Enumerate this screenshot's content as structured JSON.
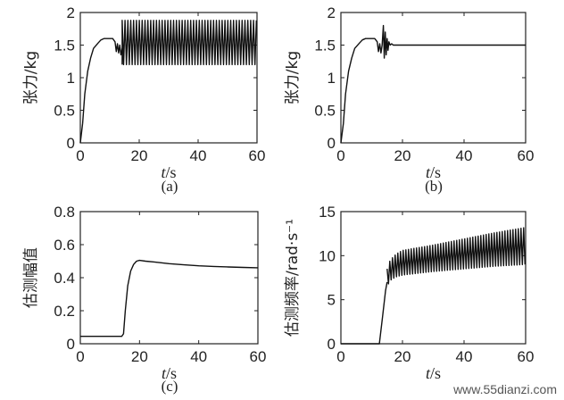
{
  "chart_data": [
    {
      "id": "a",
      "type": "line",
      "caption": "(a)",
      "ylabel": "张力/kg",
      "xlabel_var": "t",
      "xlabel_unit": "/s",
      "xlim": [
        0,
        60
      ],
      "ylim": [
        0,
        2
      ],
      "xticks": [
        0,
        20,
        40,
        60
      ],
      "yticks": [
        0,
        0.5,
        1,
        1.5,
        2
      ],
      "ytick_labels": [
        "0",
        "0.5",
        "1",
        "1.5",
        "2"
      ],
      "series": [
        {
          "x": [
            0,
            0.8,
            1.5,
            2.5,
            3.5,
            4.5,
            6,
            7,
            8,
            9,
            10,
            11,
            11.8,
            12.2,
            12.6,
            13.0,
            13.4,
            13.8,
            14.2
          ],
          "y": [
            0,
            0.3,
            0.75,
            1.1,
            1.3,
            1.45,
            1.53,
            1.58,
            1.6,
            1.6,
            1.6,
            1.6,
            1.55,
            1.4,
            1.52,
            1.38,
            1.5,
            1.35,
            1.45
          ]
        }
      ],
      "oscillation": {
        "x_start": 14.2,
        "x_end": 60,
        "y_low": 1.2,
        "y_high": 1.88
      }
    },
    {
      "id": "b",
      "type": "line",
      "caption": "(b)",
      "ylabel": "张力/kg",
      "xlabel_var": "t",
      "xlabel_unit": "/s",
      "xlim": [
        0,
        60
      ],
      "ylim": [
        0,
        2
      ],
      "xticks": [
        0,
        20,
        40,
        60
      ],
      "yticks": [
        0,
        0.5,
        1,
        1.5,
        2
      ],
      "ytick_labels": [
        "0",
        "0.5",
        "1",
        "1.5",
        "2"
      ],
      "series": [
        {
          "x": [
            0,
            0.8,
            1.5,
            2.5,
            3.5,
            4.5,
            6,
            7,
            8,
            9,
            10,
            11,
            11.8,
            12.2,
            12.6,
            13.0,
            13.4,
            13.8,
            14.1,
            14.4,
            14.7,
            15.0,
            15.3,
            15.6,
            16.0,
            16.5,
            17,
            60
          ],
          "y": [
            0,
            0.3,
            0.75,
            1.1,
            1.3,
            1.45,
            1.53,
            1.58,
            1.6,
            1.6,
            1.6,
            1.6,
            1.55,
            1.4,
            1.52,
            1.38,
            1.5,
            1.8,
            1.3,
            1.7,
            1.35,
            1.6,
            1.42,
            1.55,
            1.5,
            1.52,
            1.5,
            1.5
          ]
        }
      ]
    },
    {
      "id": "c",
      "type": "line",
      "caption": "(c)",
      "ylabel": "估测幅值",
      "xlabel_var": "t",
      "xlabel_unit": "/s",
      "xlim": [
        0,
        60
      ],
      "ylim": [
        0,
        0.8
      ],
      "xticks": [
        0,
        20,
        40,
        60
      ],
      "yticks": [
        0,
        0.2,
        0.4,
        0.6,
        0.8
      ],
      "ytick_labels": [
        "0",
        "0.2",
        "0.4",
        "0.6",
        "0.8"
      ],
      "series": [
        {
          "x": [
            0,
            5,
            10,
            14,
            14.6,
            15.2,
            16,
            17,
            18,
            19,
            20,
            22,
            25,
            30,
            35,
            40,
            45,
            50,
            55,
            60
          ],
          "y": [
            0.045,
            0.045,
            0.045,
            0.045,
            0.06,
            0.2,
            0.35,
            0.44,
            0.48,
            0.5,
            0.505,
            0.5,
            0.495,
            0.485,
            0.478,
            0.472,
            0.468,
            0.465,
            0.462,
            0.46
          ]
        }
      ]
    },
    {
      "id": "d",
      "type": "line",
      "caption": "",
      "ylabel": "估测频率/rad·s⁻¹",
      "xlabel_var": "t",
      "xlabel_unit": "/s",
      "xlim": [
        0,
        60
      ],
      "ylim": [
        0,
        15
      ],
      "xticks": [
        0,
        20,
        40,
        60
      ],
      "yticks": [
        0,
        5,
        10,
        15
      ],
      "ytick_labels": [
        "0",
        "5",
        "10",
        "15"
      ],
      "series": [
        {
          "x": [
            0,
            12.5,
            13.5,
            14.5,
            15
          ],
          "y": [
            0,
            0,
            3,
            6,
            7
          ]
        }
      ],
      "band": {
        "x": [
          15,
          16,
          18,
          20,
          25,
          30,
          40,
          50,
          60
        ],
        "low": [
          6.5,
          7.2,
          7.6,
          7.8,
          8.0,
          8.2,
          8.5,
          8.8,
          9.0
        ],
        "high": [
          8.5,
          9.5,
          10.2,
          10.6,
          10.9,
          11.2,
          11.9,
          12.6,
          13.2
        ]
      }
    }
  ],
  "watermark": "www.55dianzi.com"
}
